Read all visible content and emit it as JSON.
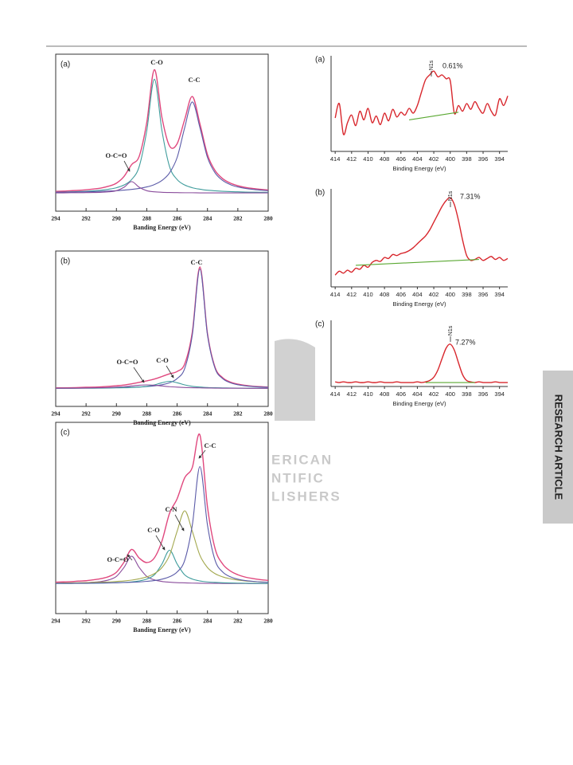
{
  "side_tab": "RESEARCH ARTICLE",
  "watermark": [
    "ERICAN",
    "NTIFIC",
    "LISHERS"
  ],
  "chart_data": [
    {
      "type": "line",
      "panel": "(a)",
      "xlabel": "Banding Energy (eV)",
      "xlim": [
        294,
        280
      ],
      "xticks": [
        294,
        292,
        290,
        288,
        286,
        284,
        282,
        280
      ],
      "ylim": [
        -16,
        122
      ],
      "x": [
        294,
        293.5,
        293,
        292.5,
        292,
        291.5,
        291,
        290.5,
        290,
        289.5,
        289,
        288.5,
        288,
        287.5,
        287,
        286.5,
        286,
        285.5,
        285,
        284.5,
        284,
        283.5,
        283,
        282.5,
        282,
        281.5,
        281,
        280.5,
        280
      ],
      "series": [
        {
          "color": "#e0487e",
          "values": [
            1.4,
            1.6,
            2.0,
            2.3,
            2.8,
            3.5,
            4.4,
            6.0,
            8.6,
            14.5,
            24.9,
            32.2,
            62.0,
            108.4,
            66.3,
            41.3,
            43.3,
            64.7,
            84.8,
            60.9,
            33.7,
            19.7,
            12.6,
            8.7,
            6.4,
            4.9,
            3.9,
            3.2,
            2.6
          ]
        },
        {
          "name": "C-O",
          "color": "#3f9c9c",
          "values": [
            0.7,
            0.8,
            1.0,
            1.2,
            1.5,
            1.9,
            2.4,
            3.3,
            4.6,
            7.0,
            11.8,
            23.2,
            54.7,
            100,
            54.7,
            23.2,
            11.8,
            7.0,
            4.6,
            3.3,
            2.4,
            1.9,
            1.5,
            1.2,
            1.0,
            0.8,
            0.7,
            0.6,
            0.5
          ]
        },
        {
          "name": "C-C",
          "color": "#5b5ba8",
          "values": [
            0.6,
            0.7,
            0.8,
            0.9,
            1.0,
            1.2,
            1.4,
            1.7,
            2.0,
            2.5,
            3.1,
            4.0,
            5.3,
            7.4,
            11.0,
            17.7,
            31.2,
            57.5,
            80,
            57.5,
            31.2,
            17.7,
            11.0,
            7.4,
            5.3,
            4.0,
            3.1,
            2.5,
            2.0
          ]
        },
        {
          "name": "O-C=O",
          "color": "#8a4d9c",
          "values": [
            0.1,
            0.1,
            0.2,
            0.2,
            0.3,
            0.4,
            0.6,
            1.0,
            2.0,
            5.0,
            10,
            5.0,
            2.0,
            1.0,
            0.6,
            0.4,
            0.3,
            0.2,
            0.2,
            0.1,
            0.1,
            0.1,
            0.1,
            0.1,
            0.1,
            0.1,
            0.1,
            0.1,
            0.1
          ]
        }
      ]
    },
    {
      "type": "line",
      "panel": "(b)",
      "xlabel": "Banding Energy (eV)",
      "xlim": [
        294,
        280
      ],
      "xticks": [
        294,
        292,
        290,
        288,
        286,
        284,
        282,
        280
      ],
      "ylim": [
        -15,
        115
      ],
      "x": [
        294,
        293.5,
        293,
        292.5,
        292,
        291.5,
        291,
        290.5,
        290,
        289.5,
        289,
        288.5,
        288,
        287.5,
        287,
        286.5,
        286,
        285.5,
        285,
        284.5,
        284,
        283.5,
        283,
        282.5,
        282,
        281.5,
        281,
        280.5,
        280
      ],
      "series": [
        {
          "color": "#e0487e",
          "values": [
            0.5,
            0.5,
            0.6,
            0.8,
            1.0,
            1.1,
            1.4,
            1.8,
            2.3,
            2.9,
            3.9,
            5.1,
            6.4,
            7.9,
            10.0,
            12.3,
            14.2,
            20.6,
            47.1,
            101.7,
            45.9,
            17.7,
            9.0,
            5.4,
            3.6,
            2.6,
            1.9,
            1.5,
            1.2
          ]
        },
        {
          "name": "C-C",
          "color": "#5b5ba8",
          "values": [
            0.2,
            0.2,
            0.3,
            0.3,
            0.4,
            0.4,
            0.5,
            0.6,
            0.7,
            0.8,
            1.0,
            1.2,
            1.6,
            2.2,
            3.1,
            4.8,
            8.3,
            16.8,
            44.7,
            100,
            44.7,
            16.8,
            8.3,
            4.8,
            3.1,
            2.2,
            1.6,
            1.2,
            1.0
          ]
        },
        {
          "name": "C-O",
          "color": "#3f9c9c",
          "values": [
            0.1,
            0.1,
            0.1,
            0.2,
            0.2,
            0.2,
            0.3,
            0.4,
            0.5,
            0.6,
            0.8,
            1.2,
            1.8,
            3.0,
            4.8,
            6.0,
            4.8,
            3.0,
            1.8,
            1.2,
            0.8,
            0.6,
            0.5,
            0.4,
            0.3,
            0.2,
            0.2,
            0.2,
            0.1
          ]
        },
        {
          "name": "O-C=O",
          "color": "#8a4d9c",
          "values": [
            0.2,
            0.2,
            0.2,
            0.3,
            0.4,
            0.5,
            0.6,
            0.8,
            1.1,
            1.5,
            2.1,
            2.7,
            3.0,
            2.7,
            2.1,
            1.5,
            1.1,
            0.8,
            0.6,
            0.5,
            0.4,
            0.3,
            0.2,
            0.2,
            0.2,
            0.2,
            0.1,
            0.1,
            0.1
          ]
        }
      ]
    },
    {
      "type": "line",
      "panel": "(c)",
      "xlabel": "Banding Energy (eV)",
      "xlim": [
        294,
        280
      ],
      "xticks": [
        294,
        292,
        290,
        288,
        286,
        284,
        282,
        280
      ],
      "ylim": [
        -25,
        135
      ],
      "x": [
        294,
        293.5,
        293,
        292.5,
        292,
        291.5,
        291,
        290.5,
        290,
        289.5,
        289,
        288.5,
        288,
        287.5,
        287,
        286.5,
        286,
        285.5,
        285,
        284.5,
        284,
        283.5,
        283,
        282.5,
        282,
        281.5,
        281,
        280.5,
        280
      ],
      "series": [
        {
          "color": "#e0487e",
          "values": [
            1.3,
            1.5,
            1.7,
            2.2,
            2.5,
            3.3,
            4.3,
            6.0,
            9.6,
            18.0,
            28.7,
            21.5,
            17.7,
            21.6,
            35.7,
            58.9,
            71.1,
            88.7,
            97.3,
            124.5,
            64.3,
            29.4,
            16.5,
            10.7,
            7.5,
            5.5,
            4.3,
            3.4,
            2.8
          ]
        },
        {
          "name": "O-C=O",
          "color": "#8a4d9c",
          "values": [
            0.3,
            0.4,
            0.5,
            0.7,
            0.9,
            1.3,
            1.9,
            3.2,
            6.1,
            13.6,
            23,
            13.6,
            6.1,
            3.2,
            1.9,
            1.3,
            0.9,
            0.7,
            0.5,
            0.4,
            0.3,
            0.3,
            0.2,
            0.2,
            0.2,
            0.2,
            0.1,
            0.1,
            0.1
          ]
        },
        {
          "name": "C-O",
          "color": "#3f9c9c",
          "values": [
            0.2,
            0.2,
            0.2,
            0.3,
            0.3,
            0.4,
            0.5,
            0.6,
            0.8,
            1.1,
            1.5,
            2.3,
            3.9,
            7.4,
            16.5,
            28,
            16.5,
            7.4,
            3.9,
            2.3,
            1.5,
            1.1,
            0.8,
            0.6,
            0.5,
            0.4,
            0.3,
            0.3,
            0.2
          ]
        },
        {
          "name": "C-N",
          "color": "#a3a84e",
          "values": [
            0.5,
            0.6,
            0.7,
            0.8,
            0.9,
            1.1,
            1.3,
            1.5,
            1.9,
            2.3,
            3.0,
            4.1,
            5.7,
            8.4,
            13.5,
            23.8,
            43.9,
            61,
            43.9,
            23.8,
            13.5,
            8.4,
            5.7,
            4.1,
            3.0,
            2.3,
            1.9,
            1.5,
            1.3
          ]
        },
        {
          "name": "C-C",
          "color": "#5b5ba8",
          "values": [
            0.3,
            0.3,
            0.3,
            0.4,
            0.4,
            0.5,
            0.6,
            0.7,
            0.8,
            1.0,
            1.2,
            1.5,
            2.0,
            2.6,
            3.8,
            5.8,
            9.8,
            19.6,
            49,
            98,
            49,
            19.6,
            9.8,
            5.8,
            3.8,
            2.6,
            2.0,
            1.5,
            1.2
          ]
        }
      ]
    },
    {
      "type": "line",
      "panel": "(a)",
      "xlabel": "Binding Energy (eV)",
      "annotations": [
        "N1s",
        "0.61%"
      ],
      "xlim": [
        414.5,
        393
      ],
      "xticks": [
        414,
        412,
        410,
        408,
        406,
        404,
        402,
        400,
        398,
        396,
        394
      ],
      "ylim": [
        0,
        100
      ],
      "x": [
        414,
        413.5,
        413,
        412.5,
        412,
        411.5,
        411,
        410.5,
        410,
        409.5,
        409,
        408.5,
        408,
        407.5,
        407,
        406.5,
        406,
        405.5,
        405,
        404.5,
        404,
        403.5,
        403,
        402.5,
        402,
        401.5,
        401,
        400.5,
        400,
        399.5,
        399,
        398.5,
        398,
        397.5,
        397,
        396.5,
        396,
        395.5,
        395,
        394.5,
        394,
        393.5,
        393
      ],
      "series": [
        {
          "color": "#d8262c",
          "values": [
            35,
            50,
            18,
            30,
            38,
            27,
            42,
            33,
            45,
            30,
            37,
            28,
            40,
            32,
            44,
            36,
            41,
            38,
            45,
            40,
            48,
            62,
            75,
            80,
            84,
            78,
            80,
            76,
            74,
            40,
            48,
            42,
            50,
            44,
            52,
            45,
            40,
            50,
            42,
            38,
            55,
            48,
            58
          ]
        },
        {
          "color": "#5aa832",
          "x": [
            405,
            399
          ],
          "values": [
            33,
            41
          ]
        }
      ]
    },
    {
      "type": "line",
      "panel": "(b)",
      "xlabel": "Binding Energy (eV)",
      "annotations": [
        "N1s",
        "7.31%"
      ],
      "xlim": [
        414.5,
        393
      ],
      "xticks": [
        414,
        412,
        410,
        408,
        406,
        404,
        402,
        400,
        398,
        396,
        394
      ],
      "ylim": [
        0,
        100
      ],
      "x": [
        414,
        413.5,
        413,
        412.5,
        412,
        411.5,
        411,
        410.5,
        410,
        409.5,
        409,
        408.5,
        408,
        407.5,
        407,
        406.5,
        406,
        405.5,
        405,
        404.5,
        404,
        403.5,
        403,
        402.5,
        402,
        401.5,
        401,
        400.5,
        400,
        399.5,
        399,
        398.5,
        398,
        397.5,
        397,
        396.5,
        396,
        395.5,
        395,
        394.5,
        394,
        393.5,
        393
      ],
      "series": [
        {
          "color": "#d8262c",
          "values": [
            12,
            16,
            14,
            17,
            15,
            19,
            18,
            22,
            20,
            25,
            27,
            26,
            30,
            29,
            33,
            32,
            34,
            35,
            37,
            40,
            44,
            48,
            52,
            58,
            66,
            74,
            82,
            88,
            91,
            84,
            68,
            48,
            32,
            27,
            28,
            30,
            27,
            29,
            31,
            28,
            30,
            27,
            29
          ]
        },
        {
          "color": "#5aa832",
          "x": [
            411.5,
            396.5
          ],
          "values": [
            22,
            28
          ]
        }
      ]
    },
    {
      "type": "line",
      "panel": "(c)",
      "xlabel": "Binding Energy (eV)",
      "annotations": [
        "N1s",
        "7.27%"
      ],
      "xlim": [
        414.5,
        393
      ],
      "xticks": [
        414,
        412,
        410,
        408,
        406,
        404,
        402,
        400,
        398,
        396,
        394
      ],
      "ylim": [
        0,
        100
      ],
      "x": [
        414,
        413.5,
        413,
        412.5,
        412,
        411.5,
        411,
        410.5,
        410,
        409.5,
        409,
        408.5,
        408,
        407.5,
        407,
        406.5,
        406,
        405.5,
        405,
        404.5,
        404,
        403.5,
        403,
        402.5,
        402,
        401.5,
        401,
        400.5,
        400,
        399.5,
        399,
        398.5,
        398,
        397.5,
        397,
        396.5,
        396,
        395.5,
        395,
        394.5,
        394,
        393.5,
        393
      ],
      "series": [
        {
          "color": "#d8262c",
          "values": [
            7,
            6,
            7,
            6,
            6,
            7,
            6,
            6,
            7,
            6,
            6,
            7,
            6,
            6,
            6,
            7,
            6,
            6,
            6,
            6,
            7,
            6,
            7,
            9,
            14,
            25,
            42,
            58,
            64,
            55,
            36,
            18,
            9,
            7,
            6,
            7,
            6,
            6,
            6,
            7,
            6,
            6,
            6
          ]
        },
        {
          "color": "#5aa832",
          "x": [
            403,
            397
          ],
          "values": [
            6,
            6
          ]
        }
      ]
    }
  ]
}
